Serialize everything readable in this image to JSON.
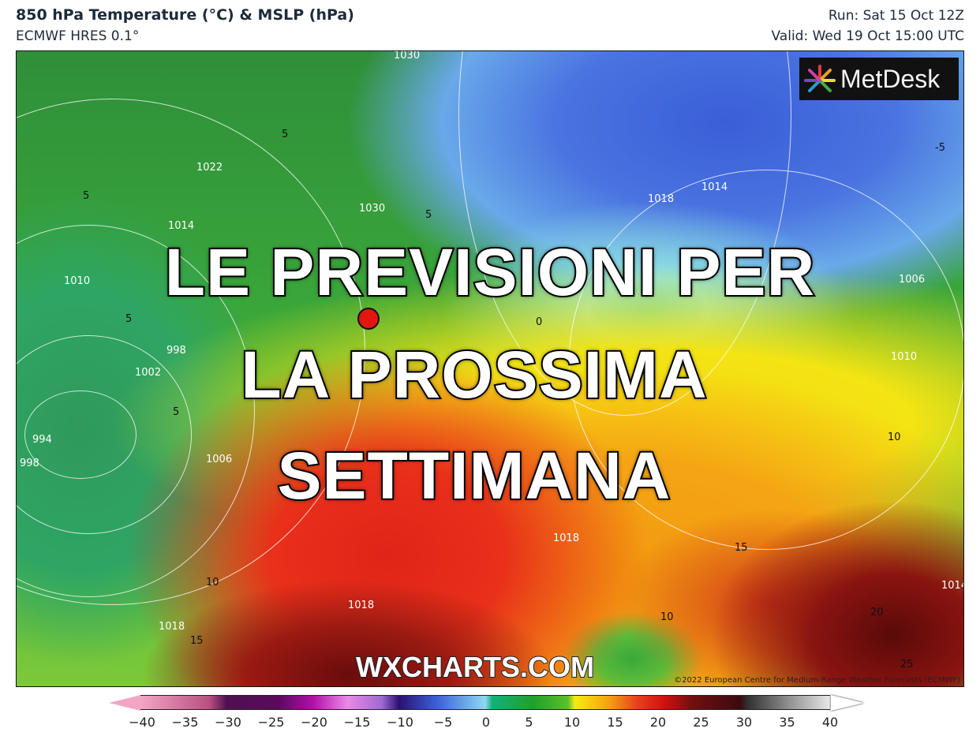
{
  "header": {
    "title": "850 hPa Temperature (°C) & MSLP (hPa)",
    "subtitle": "ECMWF HRES 0.1°",
    "run": "Run: Sat 15 Oct 12Z",
    "valid": "Valid: Wed 19 Oct 15:00 UTC"
  },
  "map": {
    "logo_text": "MetDesk",
    "overlay_lines": [
      "LE PREVISIONI PER",
      "LA PROSSIMA",
      "SETTIMANA"
    ],
    "watermark": "WXCHARTS.COM",
    "copyright": "©2022 European Centre for Medium-Range Weather Forecasts (ECMWF)",
    "contour_labels": [
      "1030",
      "1022",
      "1030",
      "1014",
      "1010",
      "998",
      "1002",
      "994",
      "998",
      "1006",
      "1018",
      "1014",
      "1006",
      "1010",
      "1018",
      "1018",
      "1018",
      "1014",
      "5",
      "5",
      "5",
      "5",
      "5",
      "-5",
      "0",
      "10",
      "10",
      "10",
      "15",
      "15",
      "20",
      "25"
    ],
    "marker_color": "#e3150f"
  },
  "colorbar": {
    "ticks": [
      "−40",
      "−35",
      "−30",
      "−25",
      "−20",
      "−15",
      "−10",
      "−5",
      "0",
      "5",
      "10",
      "15",
      "20",
      "25",
      "30",
      "35",
      "40"
    ],
    "range": [
      -40,
      40
    ],
    "unit": "°C"
  }
}
